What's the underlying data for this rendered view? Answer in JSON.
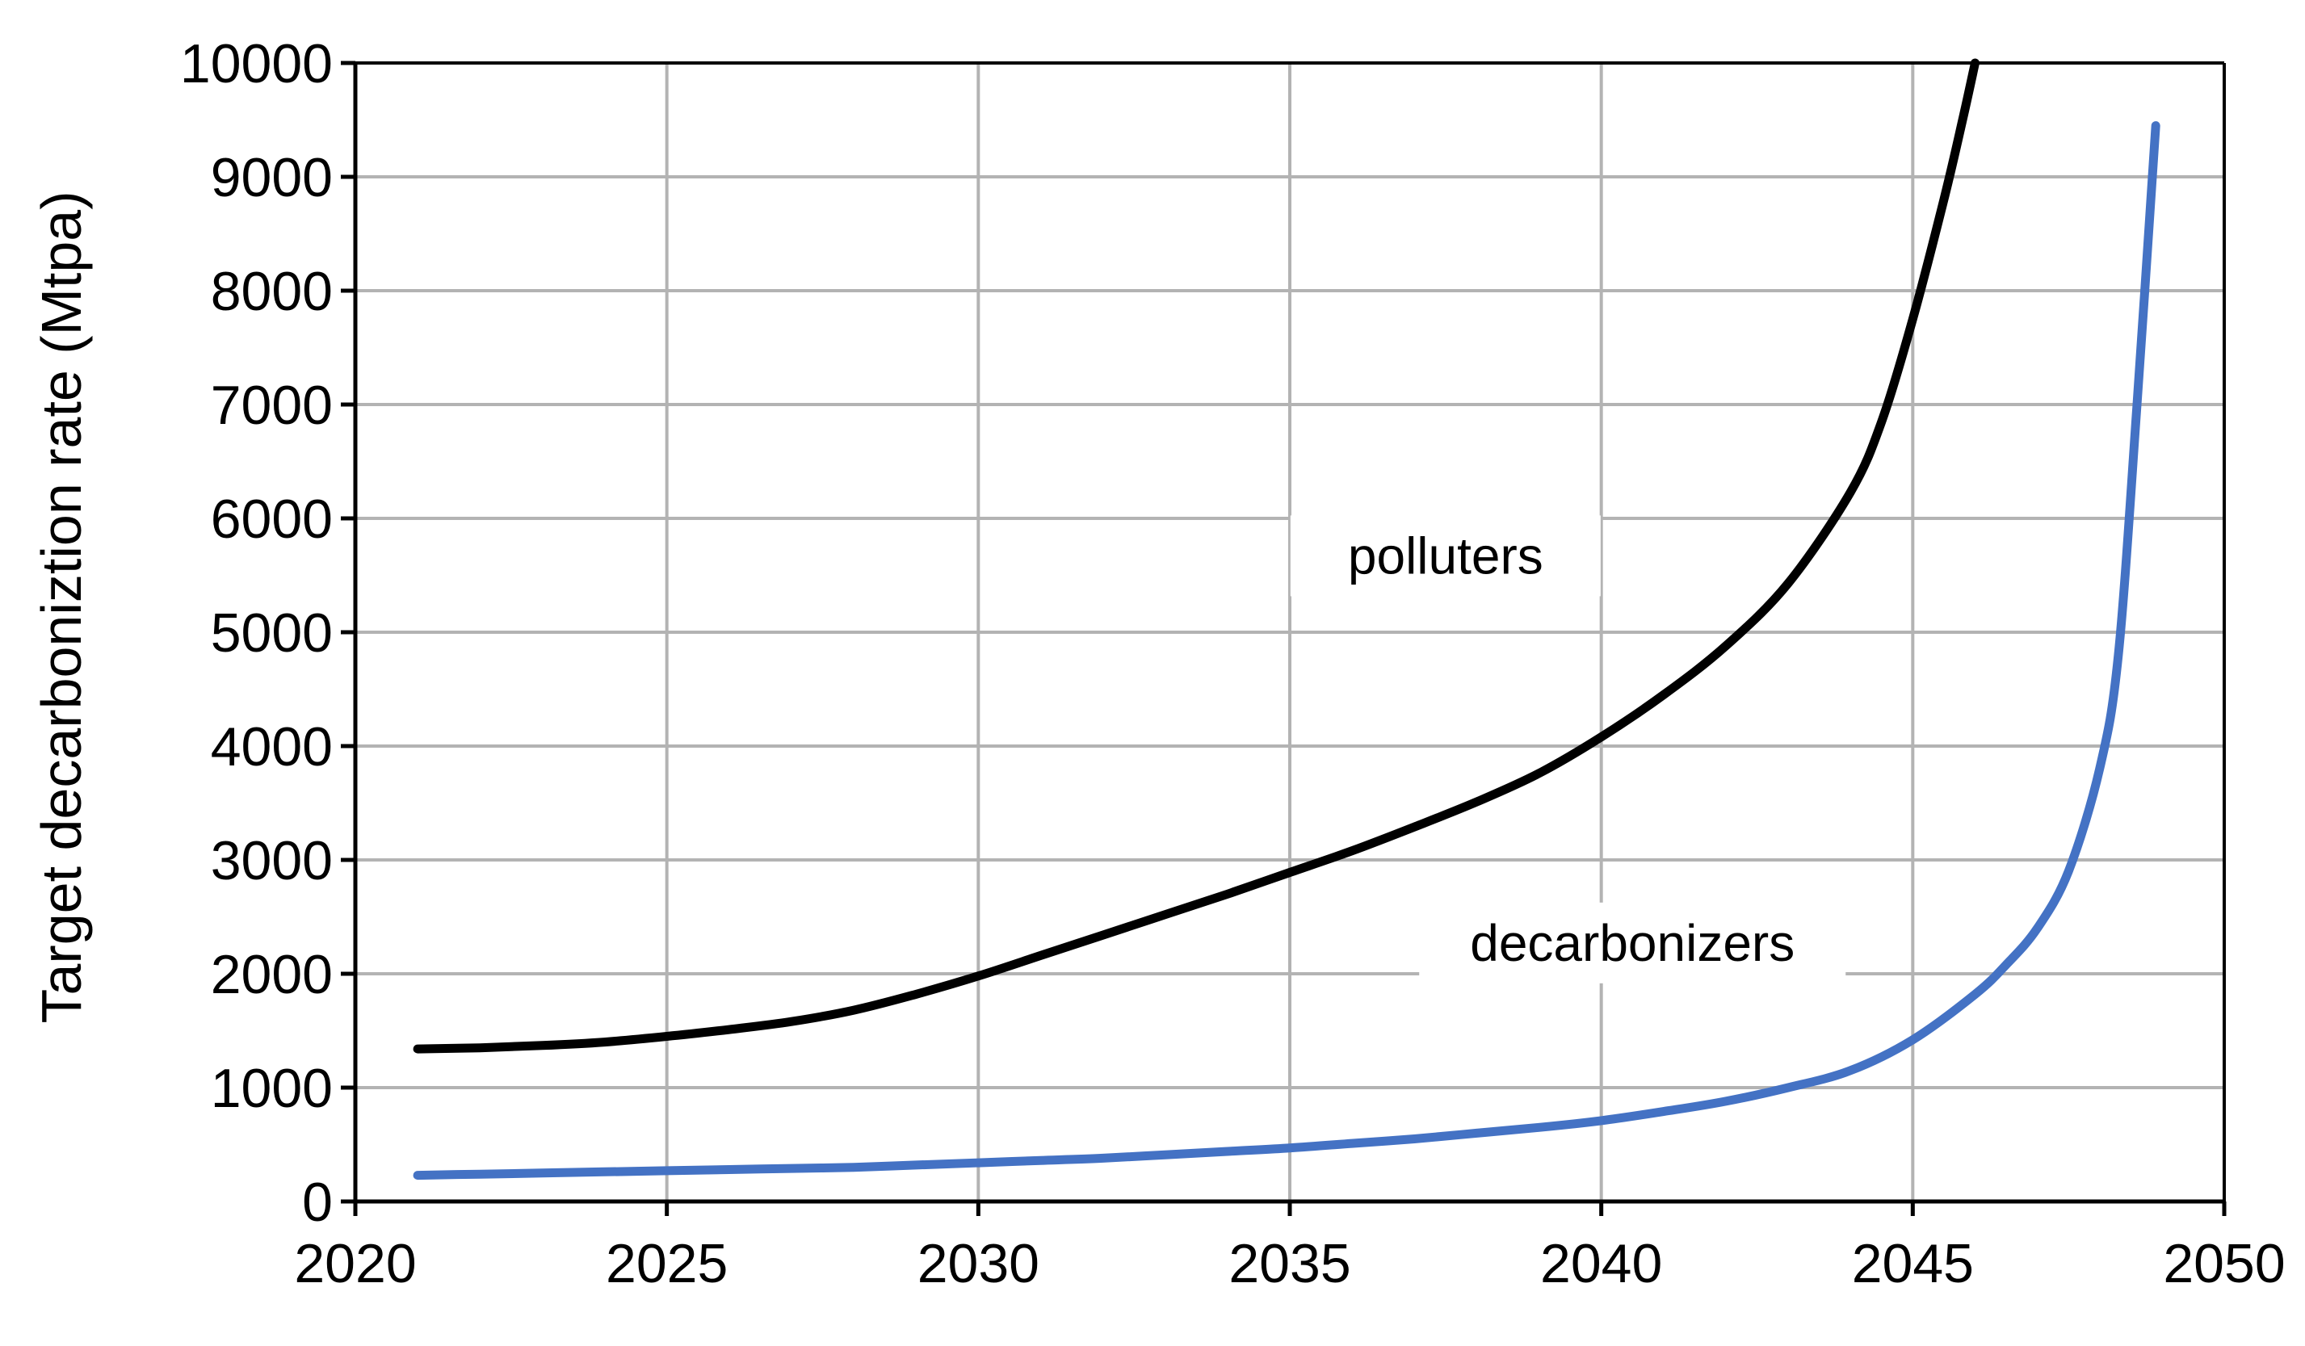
{
  "chart_data": {
    "type": "line",
    "title": "",
    "xlabel": "",
    "ylabel": "Target decarboniztion rate (Mtpa)",
    "xlim": [
      2020,
      2050
    ],
    "ylim": [
      0,
      10000
    ],
    "x_ticks": [
      2020,
      2025,
      2030,
      2035,
      2040,
      2045,
      2050
    ],
    "y_ticks": [
      0,
      1000,
      2000,
      3000,
      4000,
      5000,
      6000,
      7000,
      8000,
      9000,
      10000
    ],
    "grid": true,
    "legend": "none",
    "series": [
      {
        "name": "polluters",
        "color": "#000000",
        "x": [
          2021,
          2022,
          2023,
          2024,
          2025,
          2026,
          2027,
          2028,
          2029,
          2030,
          2031,
          2032,
          2033,
          2034,
          2035,
          2036,
          2037,
          2038,
          2039,
          2040,
          2041,
          2042,
          2043,
          2044,
          2044.5,
          2045,
          2045.5,
          2045.8,
          2046
        ],
        "values": [
          1340,
          1350,
          1370,
          1400,
          1450,
          1510,
          1580,
          1680,
          1820,
          1980,
          2160,
          2340,
          2520,
          2700,
          2890,
          3080,
          3290,
          3510,
          3760,
          4080,
          4450,
          4880,
          5430,
          6230,
          6850,
          7750,
          8800,
          9500,
          10000
        ]
      },
      {
        "name": "decarbonizers",
        "color": "#4472c4",
        "x": [
          2021,
          2022,
          2023,
          2024,
          2025,
          2026,
          2027,
          2028,
          2029,
          2030,
          2031,
          2032,
          2033,
          2034,
          2035,
          2036,
          2037,
          2038,
          2039,
          2040,
          2041,
          2042,
          2043,
          2044,
          2045,
          2046,
          2046.5,
          2047,
          2047.5,
          2048,
          2048.3,
          2048.6,
          2048.9
        ],
        "values": [
          230,
          240,
          250,
          260,
          270,
          280,
          290,
          300,
          320,
          340,
          360,
          380,
          410,
          440,
          470,
          510,
          550,
          600,
          650,
          710,
          790,
          880,
          1000,
          1150,
          1420,
          1820,
          2080,
          2400,
          2900,
          3800,
          4800,
          7000,
          9450
        ]
      }
    ],
    "annotations": [
      {
        "text": "polluters",
        "x": 2037.5,
        "y": 5600
      },
      {
        "text": "decarbonizers",
        "x": 2040.5,
        "y": 2200
      }
    ]
  }
}
